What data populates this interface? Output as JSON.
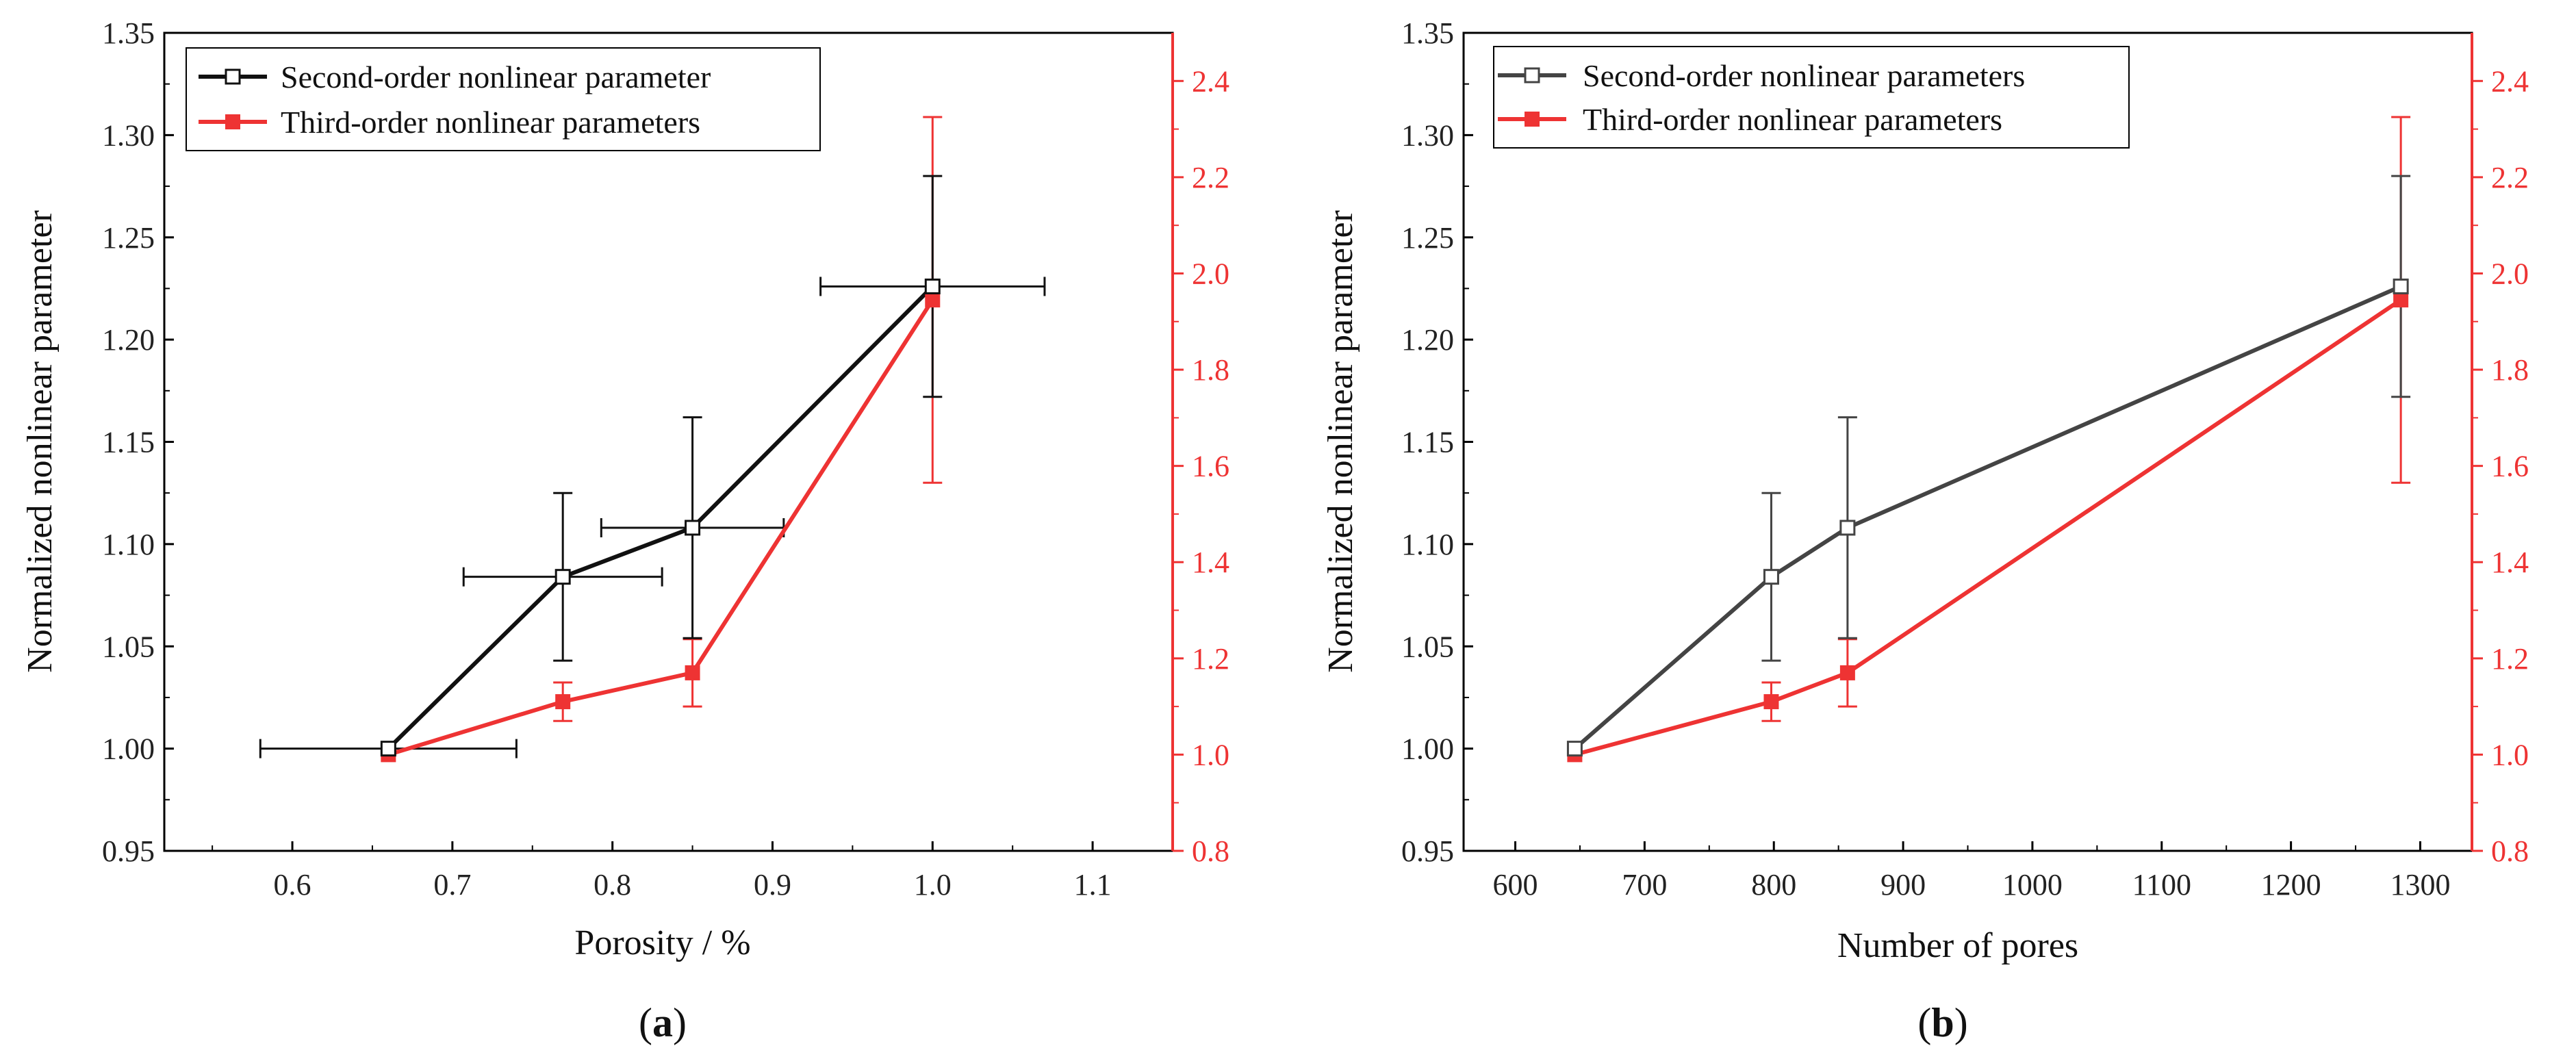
{
  "colors": {
    "black_series": "#111111",
    "gray_series": "#444444",
    "red_series": "#ee3333"
  },
  "chart_data": [
    {
      "type": "line",
      "panel_label": "a",
      "xlabel": "Porosity / %",
      "ylabel": "Normalized nonlinear parameter",
      "xlim": [
        0.52,
        1.15
      ],
      "ylim": [
        0.95,
        1.35
      ],
      "y2lim": [
        0.8,
        2.5
      ],
      "xticks": [
        "0.6",
        "0.7",
        "0.8",
        "0.9",
        "1.0",
        "1.1"
      ],
      "yticks": [
        "0.95",
        "1.00",
        "1.05",
        "1.10",
        "1.15",
        "1.20",
        "1.25",
        "1.30",
        "1.35"
      ],
      "y2ticks": [
        "0.8",
        "1.0",
        "1.2",
        "1.4",
        "1.6",
        "1.8",
        "2.0",
        "2.2",
        "2.4"
      ],
      "legend_location": "top-left",
      "series": [
        {
          "name": "Second-order nonlinear parameter",
          "axis": "left",
          "marker": "hollow-square",
          "color": "#111111",
          "x": [
            0.66,
            0.769,
            0.85,
            1.0
          ],
          "y": [
            1.0,
            1.084,
            1.108,
            1.226
          ],
          "xerr": [
            0.08,
            0.062,
            0.057,
            0.07
          ],
          "yerr": [
            0,
            0.041,
            0.054,
            0.054
          ]
        },
        {
          "name": "Third-order nonlinear parameters",
          "axis": "right",
          "marker": "filled-square",
          "color": "#ee3333",
          "x": [
            0.66,
            0.769,
            0.85,
            1.0
          ],
          "y": [
            1.0,
            1.11,
            1.17,
            1.945
          ],
          "yerr": [
            0,
            0.04,
            0.07,
            0.38
          ]
        }
      ]
    },
    {
      "type": "line",
      "panel_label": "b",
      "xlabel": "Number of pores",
      "ylabel": "Normalized nonlinear parameter",
      "xlim": [
        560,
        1340
      ],
      "ylim": [
        0.95,
        1.35
      ],
      "y2lim": [
        0.8,
        2.5
      ],
      "xticks": [
        "600",
        "700",
        "800",
        "900",
        "1000",
        "1100",
        "1200",
        "1300"
      ],
      "yticks": [
        "0.95",
        "1.00",
        "1.05",
        "1.10",
        "1.15",
        "1.20",
        "1.25",
        "1.30",
        "1.35"
      ],
      "y2ticks": [
        "0.8",
        "1.0",
        "1.2",
        "1.4",
        "1.6",
        "1.8",
        "2.0",
        "2.2",
        "2.4"
      ],
      "legend_location": "top-left",
      "series": [
        {
          "name": "Second-order nonlinear parameters",
          "axis": "left",
          "marker": "hollow-square",
          "color": "#444444",
          "x": [
            646,
            798,
            857,
            1285
          ],
          "y": [
            1.0,
            1.084,
            1.108,
            1.226
          ],
          "yerr": [
            0,
            0.041,
            0.054,
            0.054
          ]
        },
        {
          "name": "Third-order nonlinear parameters",
          "axis": "right",
          "marker": "filled-square",
          "color": "#ee3333",
          "x": [
            646,
            798,
            857,
            1285
          ],
          "y": [
            1.0,
            1.11,
            1.17,
            1.945
          ],
          "yerr": [
            0,
            0.04,
            0.07,
            0.38
          ]
        }
      ]
    }
  ]
}
